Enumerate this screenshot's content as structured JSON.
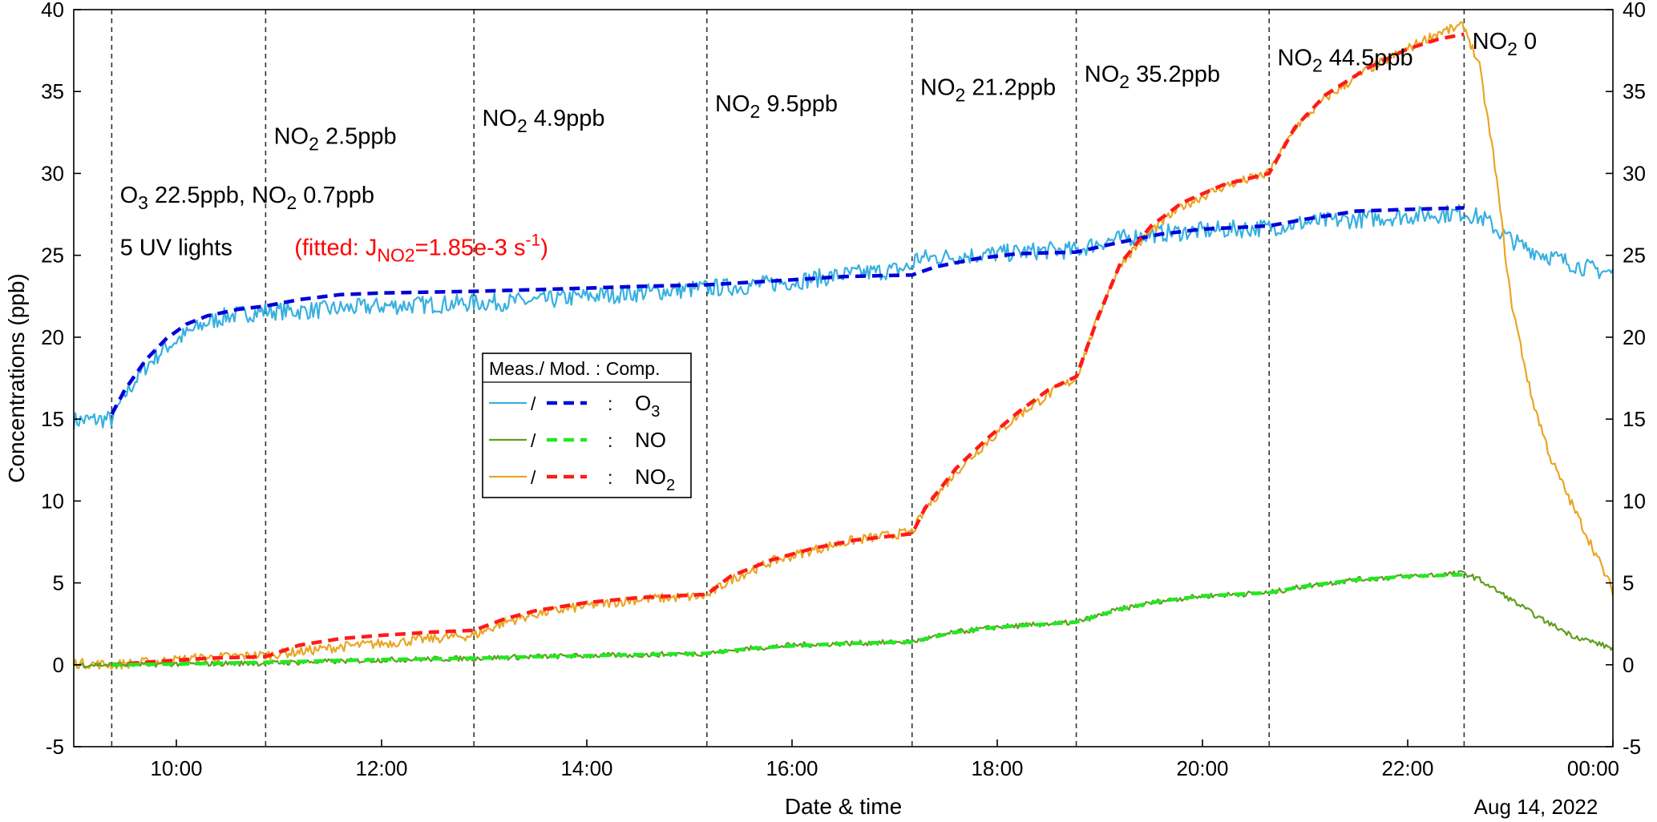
{
  "chart_data": {
    "type": "line",
    "xlabel": "Date & time",
    "ylabel": "Concentrations (ppb)",
    "x_range": [
      "09:00",
      "24:00"
    ],
    "ylim": [
      -5,
      40
    ],
    "y_ticks": [
      -5,
      0,
      5,
      10,
      15,
      20,
      25,
      30,
      35,
      40
    ],
    "y_right_axis": true,
    "x_ticks": [
      {
        "hour": 10,
        "label": "10:00"
      },
      {
        "hour": 12,
        "label": "12:00"
      },
      {
        "hour": 14,
        "label": "14:00"
      },
      {
        "hour": 16,
        "label": "16:00"
      },
      {
        "hour": 18,
        "label": "18:00"
      },
      {
        "hour": 20,
        "label": "20:00"
      },
      {
        "hour": 22,
        "label": "22:00"
      },
      {
        "hour": 24,
        "label": "00:00"
      }
    ],
    "date_label": "Aug 14, 2022",
    "grid": false,
    "event_lines_hours": [
      9.37,
      10.87,
      12.9,
      15.17,
      17.17,
      18.77,
      20.65,
      22.55
    ],
    "annotations": [
      {
        "parts": [
          [
            "O",
            ""
          ],
          [
            "3",
            "sub"
          ],
          [
            " 22.5ppb, NO",
            ""
          ],
          [
            "2",
            "sub"
          ],
          [
            " 0.7ppb",
            ""
          ]
        ],
        "hour": 9.45,
        "y": 28.2
      },
      {
        "parts": [
          [
            "5 UV lights ",
            ""
          ]
        ],
        "hour": 9.45,
        "y": 25.0
      },
      {
        "parts": [
          [
            "(fitted: J",
            ""
          ],
          [
            "NO2",
            "sub"
          ],
          [
            "=1.85e-3 s",
            ""
          ],
          [
            "-1",
            "sup"
          ],
          [
            ")",
            ""
          ]
        ],
        "hour": 11.15,
        "y": 25.0,
        "color": "#ff0000"
      },
      {
        "parts": [
          [
            "NO",
            ""
          ],
          [
            "2",
            "sub"
          ],
          [
            " 2.5ppb",
            ""
          ]
        ],
        "hour": 10.95,
        "y": 31.8
      },
      {
        "parts": [
          [
            "NO",
            ""
          ],
          [
            "2",
            "sub"
          ],
          [
            " 4.9ppb",
            ""
          ]
        ],
        "hour": 12.98,
        "y": 32.9
      },
      {
        "parts": [
          [
            "NO",
            ""
          ],
          [
            "2",
            "sub"
          ],
          [
            " 9.5ppb",
            ""
          ]
        ],
        "hour": 15.25,
        "y": 33.8
      },
      {
        "parts": [
          [
            "NO",
            ""
          ],
          [
            "2",
            "sub"
          ],
          [
            " 21.2ppb",
            ""
          ]
        ],
        "hour": 17.25,
        "y": 34.8
      },
      {
        "parts": [
          [
            "NO",
            ""
          ],
          [
            "2",
            "sub"
          ],
          [
            " 35.2ppb",
            ""
          ]
        ],
        "hour": 18.85,
        "y": 35.6
      },
      {
        "parts": [
          [
            "NO",
            ""
          ],
          [
            "2",
            "sub"
          ],
          [
            " 44.5ppb",
            ""
          ]
        ],
        "hour": 20.73,
        "y": 36.6
      },
      {
        "parts": [
          [
            "NO",
            ""
          ],
          [
            "2",
            "sub"
          ],
          [
            " 0",
            ""
          ]
        ],
        "hour": 22.63,
        "y": 37.6
      }
    ],
    "legend": {
      "header": "Meas./ Mod. : Comp.",
      "placement": "center-left",
      "entries": [
        {
          "meas_color": "#39b0e0",
          "model_color": "#0000d8",
          "label_parts": [
            [
              "O",
              ""
            ],
            [
              "3",
              "sub"
            ]
          ]
        },
        {
          "meas_color": "#5f9e1e",
          "model_color": "#22e822",
          "label_parts": [
            [
              "NO",
              ""
            ]
          ]
        },
        {
          "meas_color": "#eba524",
          "model_color": "#ff1a1a",
          "label_parts": [
            [
              "NO",
              ""
            ],
            [
              "2",
              "sub"
            ]
          ]
        }
      ]
    },
    "series": [
      {
        "key": "O3_meas",
        "style": "measured",
        "color": "#39b0e0",
        "points": [
          [
            9.0,
            14.9
          ],
          [
            9.37,
            15.0
          ],
          [
            9.5,
            16.5
          ],
          [
            9.7,
            18.2
          ],
          [
            9.9,
            19.4
          ],
          [
            10.1,
            20.2
          ],
          [
            10.3,
            20.9
          ],
          [
            10.5,
            21.3
          ],
          [
            10.87,
            21.6
          ],
          [
            11.2,
            21.6
          ],
          [
            11.5,
            21.7
          ],
          [
            12.0,
            21.9
          ],
          [
            12.5,
            22.0
          ],
          [
            12.9,
            22.1
          ],
          [
            13.5,
            22.2
          ],
          [
            14.0,
            22.5
          ],
          [
            14.5,
            22.7
          ],
          [
            15.17,
            23.0
          ],
          [
            15.5,
            23.1
          ],
          [
            16.0,
            23.4
          ],
          [
            16.5,
            23.8
          ],
          [
            17.0,
            24.1
          ],
          [
            17.17,
            24.3
          ],
          [
            17.2,
            24.8
          ],
          [
            17.5,
            24.9
          ],
          [
            18.0,
            25.1
          ],
          [
            18.5,
            25.3
          ],
          [
            18.77,
            25.3
          ],
          [
            19.0,
            25.8
          ],
          [
            19.5,
            26.3
          ],
          [
            20.0,
            26.5
          ],
          [
            20.65,
            26.7
          ],
          [
            21.0,
            27.0
          ],
          [
            21.5,
            27.2
          ],
          [
            22.0,
            27.4
          ],
          [
            22.55,
            27.6
          ],
          [
            22.75,
            27.2
          ],
          [
            22.9,
            26.4
          ],
          [
            23.1,
            25.6
          ],
          [
            23.4,
            24.9
          ],
          [
            23.7,
            24.3
          ],
          [
            24.0,
            23.9
          ]
        ],
        "noise": 0.55
      },
      {
        "key": "O3_model",
        "style": "model",
        "color": "#0000d8",
        "points": [
          [
            9.37,
            15.3
          ],
          [
            9.5,
            16.8
          ],
          [
            9.7,
            18.6
          ],
          [
            9.9,
            19.9
          ],
          [
            10.1,
            20.8
          ],
          [
            10.3,
            21.3
          ],
          [
            10.6,
            21.7
          ],
          [
            10.87,
            21.9
          ],
          [
            11.2,
            22.3
          ],
          [
            11.6,
            22.6
          ],
          [
            12.0,
            22.7
          ],
          [
            12.9,
            22.8
          ],
          [
            13.5,
            22.9
          ],
          [
            14.0,
            23.0
          ],
          [
            14.5,
            23.1
          ],
          [
            15.17,
            23.2
          ],
          [
            16.0,
            23.5
          ],
          [
            16.5,
            23.7
          ],
          [
            17.17,
            23.8
          ],
          [
            17.4,
            24.3
          ],
          [
            17.8,
            24.8
          ],
          [
            18.2,
            25.1
          ],
          [
            18.77,
            25.2
          ],
          [
            19.2,
            25.8
          ],
          [
            19.6,
            26.3
          ],
          [
            20.0,
            26.6
          ],
          [
            20.65,
            26.8
          ],
          [
            21.0,
            27.2
          ],
          [
            21.5,
            27.7
          ],
          [
            22.0,
            27.8
          ],
          [
            22.55,
            27.9
          ]
        ],
        "noise": 0
      },
      {
        "key": "NO_meas",
        "style": "measured",
        "color": "#5f9e1e",
        "points": [
          [
            9.0,
            0.0
          ],
          [
            9.37,
            0.0
          ],
          [
            10.0,
            0.05
          ],
          [
            10.87,
            0.1
          ],
          [
            11.5,
            0.2
          ],
          [
            12.0,
            0.3
          ],
          [
            12.9,
            0.4
          ],
          [
            13.5,
            0.5
          ],
          [
            14.0,
            0.55
          ],
          [
            14.5,
            0.6
          ],
          [
            15.17,
            0.7
          ],
          [
            15.6,
            1.0
          ],
          [
            16.0,
            1.2
          ],
          [
            16.5,
            1.3
          ],
          [
            17.17,
            1.4
          ],
          [
            17.6,
            2.0
          ],
          [
            18.0,
            2.3
          ],
          [
            18.77,
            2.6
          ],
          [
            19.2,
            3.4
          ],
          [
            19.6,
            3.9
          ],
          [
            20.0,
            4.2
          ],
          [
            20.65,
            4.4
          ],
          [
            21.0,
            4.8
          ],
          [
            21.5,
            5.2
          ],
          [
            22.0,
            5.4
          ],
          [
            22.55,
            5.6
          ],
          [
            22.7,
            5.2
          ],
          [
            23.0,
            4.0
          ],
          [
            23.3,
            2.8
          ],
          [
            23.6,
            1.8
          ],
          [
            24.0,
            1.0
          ]
        ],
        "noise": 0.16
      },
      {
        "key": "NO_model",
        "style": "model",
        "color": "#22e822",
        "points": [
          [
            9.37,
            0.0
          ],
          [
            10.0,
            0.05
          ],
          [
            10.87,
            0.15
          ],
          [
            11.5,
            0.25
          ],
          [
            12.0,
            0.32
          ],
          [
            12.9,
            0.4
          ],
          [
            13.5,
            0.5
          ],
          [
            14.0,
            0.55
          ],
          [
            14.5,
            0.62
          ],
          [
            15.17,
            0.7
          ],
          [
            15.6,
            1.0
          ],
          [
            16.0,
            1.15
          ],
          [
            16.5,
            1.3
          ],
          [
            17.17,
            1.4
          ],
          [
            17.6,
            2.0
          ],
          [
            18.0,
            2.3
          ],
          [
            18.77,
            2.6
          ],
          [
            19.2,
            3.4
          ],
          [
            19.6,
            3.9
          ],
          [
            20.0,
            4.2
          ],
          [
            20.65,
            4.4
          ],
          [
            21.0,
            4.8
          ],
          [
            21.5,
            5.2
          ],
          [
            22.0,
            5.4
          ],
          [
            22.55,
            5.5
          ]
        ],
        "noise": 0
      },
      {
        "key": "NO2_meas",
        "style": "measured",
        "color": "#eba524",
        "points": [
          [
            9.0,
            0.1
          ],
          [
            9.37,
            0.0
          ],
          [
            9.8,
            0.2
          ],
          [
            10.2,
            0.4
          ],
          [
            10.87,
            0.6
          ],
          [
            11.2,
            0.8
          ],
          [
            11.6,
            1.1
          ],
          [
            12.0,
            1.3
          ],
          [
            12.5,
            1.6
          ],
          [
            12.9,
            1.8
          ],
          [
            13.2,
            2.6
          ],
          [
            13.5,
            3.1
          ],
          [
            14.0,
            3.6
          ],
          [
            14.5,
            4.0
          ],
          [
            15.17,
            4.2
          ],
          [
            15.4,
            5.2
          ],
          [
            15.8,
            6.3
          ],
          [
            16.2,
            7.0
          ],
          [
            16.6,
            7.6
          ],
          [
            17.17,
            8.1
          ],
          [
            17.3,
            9.5
          ],
          [
            17.6,
            11.8
          ],
          [
            17.9,
            13.6
          ],
          [
            18.2,
            15.2
          ],
          [
            18.5,
            16.5
          ],
          [
            18.77,
            17.5
          ],
          [
            19.0,
            21.5
          ],
          [
            19.2,
            24.5
          ],
          [
            19.5,
            26.5
          ],
          [
            19.8,
            28.0
          ],
          [
            20.2,
            29.2
          ],
          [
            20.65,
            30.0
          ],
          [
            20.9,
            32.8
          ],
          [
            21.2,
            34.6
          ],
          [
            21.6,
            36.3
          ],
          [
            22.0,
            37.6
          ],
          [
            22.3,
            38.6
          ],
          [
            22.55,
            39.0
          ],
          [
            22.7,
            36.5
          ],
          [
            22.85,
            30.5
          ],
          [
            23.0,
            22.5
          ],
          [
            23.2,
            16.5
          ],
          [
            23.4,
            12.5
          ],
          [
            23.6,
            9.8
          ],
          [
            23.8,
            7.2
          ],
          [
            24.0,
            4.5
          ]
        ],
        "noise": 0.3
      },
      {
        "key": "NO2_model",
        "style": "model",
        "color": "#ff1a1a",
        "points": [
          [
            9.37,
            0.0
          ],
          [
            9.8,
            0.2
          ],
          [
            10.3,
            0.4
          ],
          [
            10.87,
            0.5
          ],
          [
            11.2,
            1.2
          ],
          [
            11.6,
            1.6
          ],
          [
            12.0,
            1.8
          ],
          [
            12.5,
            2.0
          ],
          [
            12.9,
            2.1
          ],
          [
            13.2,
            2.8
          ],
          [
            13.5,
            3.3
          ],
          [
            14.0,
            3.8
          ],
          [
            14.5,
            4.1
          ],
          [
            15.17,
            4.3
          ],
          [
            15.4,
            5.4
          ],
          [
            15.8,
            6.4
          ],
          [
            16.2,
            7.1
          ],
          [
            16.6,
            7.6
          ],
          [
            17.17,
            8.0
          ],
          [
            17.3,
            9.6
          ],
          [
            17.6,
            12.0
          ],
          [
            17.9,
            13.8
          ],
          [
            18.2,
            15.4
          ],
          [
            18.5,
            16.8
          ],
          [
            18.77,
            17.6
          ],
          [
            19.0,
            21.5
          ],
          [
            19.2,
            24.5
          ],
          [
            19.5,
            26.8
          ],
          [
            19.8,
            28.2
          ],
          [
            20.2,
            29.3
          ],
          [
            20.65,
            30.0
          ],
          [
            20.9,
            32.8
          ],
          [
            21.2,
            34.8
          ],
          [
            21.6,
            36.4
          ],
          [
            22.0,
            37.6
          ],
          [
            22.3,
            38.2
          ],
          [
            22.55,
            38.5
          ]
        ],
        "noise": 0
      }
    ]
  }
}
